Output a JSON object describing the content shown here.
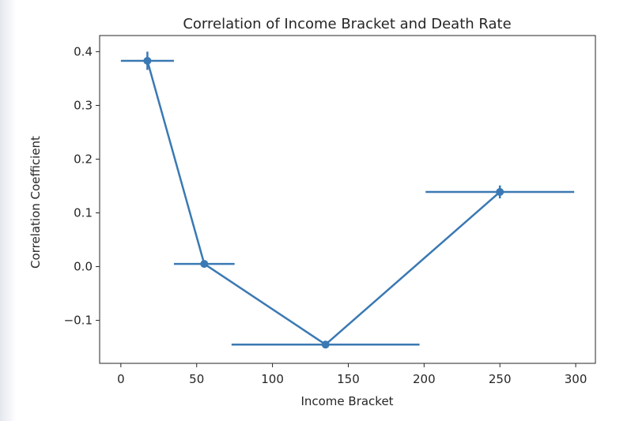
{
  "chart_data": {
    "type": "line",
    "title": "Correlation of Income Bracket and Death Rate",
    "xlabel": "Income Bracket",
    "ylabel": "Correlation Coefficient",
    "xlim": [
      -14,
      313
    ],
    "ylim": [
      -0.18,
      0.43
    ],
    "grid": false,
    "color": "#3a79b3",
    "xticks": [
      0,
      50,
      100,
      150,
      200,
      250,
      300
    ],
    "xtick_labels": [
      "0",
      "50",
      "100",
      "150",
      "200",
      "250",
      "300"
    ],
    "yticks": [
      -0.1,
      0.0,
      0.1,
      0.2,
      0.3,
      0.4
    ],
    "ytick_labels": [
      "−0.1",
      "0.0",
      "0.1",
      "0.2",
      "0.3",
      "0.4"
    ],
    "series": [
      {
        "points": [
          {
            "x": 17.5,
            "y": 0.383,
            "xerr": 17.5,
            "yerr": 0.017
          },
          {
            "x": 55,
            "y": 0.005,
            "xerr": 20,
            "yerr": 0.0
          },
          {
            "x": 135,
            "y": -0.145,
            "xerr": 62,
            "yerr": 0.0
          },
          {
            "x": 250,
            "y": 0.139,
            "xerr": 49,
            "yerr": 0.012
          }
        ]
      }
    ]
  }
}
